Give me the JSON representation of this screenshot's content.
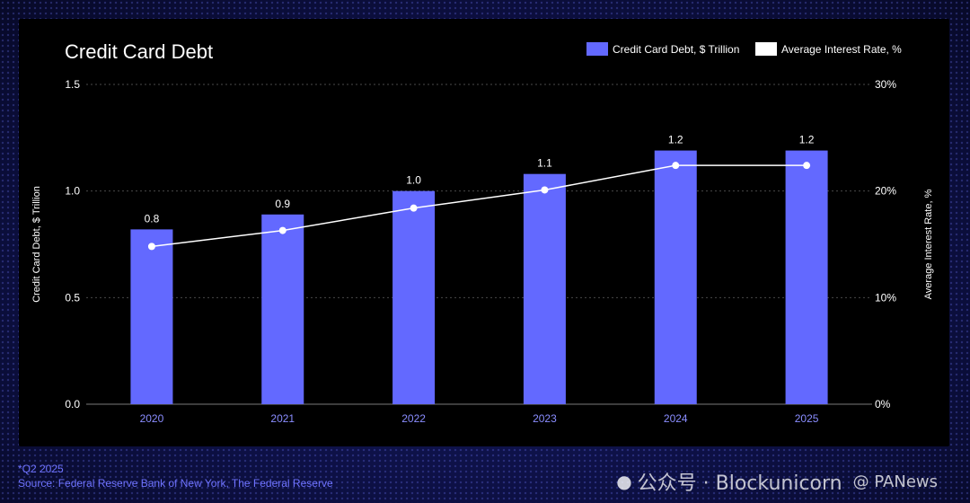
{
  "chart_data": {
    "type": "bar",
    "title": "Credit Card Debt",
    "categories": [
      "2020",
      "2021",
      "2022",
      "2023",
      "2024",
      "2025"
    ],
    "series": [
      {
        "name": "Credit Card Debt, $ Trillion",
        "type": "bar",
        "axis": "left",
        "values": [
          0.82,
          0.89,
          1.0,
          1.08,
          1.19,
          1.19
        ],
        "labels": [
          "0.8",
          "0.9",
          "1.0",
          "1.1",
          "1.2",
          "1.2"
        ],
        "color": "#6369ff"
      },
      {
        "name": "Average Interest Rate, %",
        "type": "line",
        "axis": "right",
        "values": [
          14.8,
          16.3,
          18.4,
          20.1,
          22.4,
          22.4
        ],
        "color": "#ffffff"
      }
    ],
    "ylabel": "Credit Card Debt, $ Trillion",
    "y2label": "Average Interest Rate, %",
    "ylim": [
      0,
      1.5
    ],
    "y2lim": [
      0,
      30
    ],
    "yticks": [
      "0.0",
      "0.5",
      "1.0",
      "1.5"
    ],
    "y2ticks": [
      "0%",
      "10%",
      "20%",
      "30%"
    ],
    "grid": true,
    "legend_position": "top-right"
  },
  "footnotes": {
    "note": "*Q2 2025",
    "source": "Source: Federal Reserve Bank of New York, The Federal Reserve"
  },
  "watermark": {
    "text": "公众号 · Blockunicorn",
    "secondary": "@ PANews"
  },
  "colors": {
    "bar": "#6369ff",
    "line": "#ffffff",
    "accent_text": "#6f73ff"
  }
}
